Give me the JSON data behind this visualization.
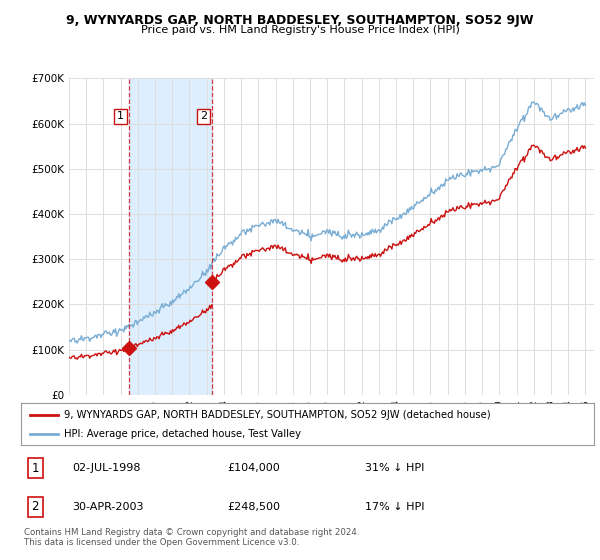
{
  "title": "9, WYNYARDS GAP, NORTH BADDESLEY, SOUTHAMPTON, SO52 9JW",
  "subtitle": "Price paid vs. HM Land Registry's House Price Index (HPI)",
  "ylim": [
    0,
    700000
  ],
  "yticks": [
    0,
    100000,
    200000,
    300000,
    400000,
    500000,
    600000,
    700000
  ],
  "ytick_labels": [
    "£0",
    "£100K",
    "£200K",
    "£300K",
    "£400K",
    "£500K",
    "£600K",
    "£700K"
  ],
  "sale1_date": 1998.5,
  "sale1_price": 104000,
  "sale1_label": "1",
  "sale2_date": 2003.33,
  "sale2_price": 248500,
  "sale2_label": "2",
  "hpi_color": "#7aadd4",
  "price_color": "#cc1111",
  "dashed_color": "#cc1111",
  "shade_color": "#ddeeff",
  "legend_line1": "9, WYNYARDS GAP, NORTH BADDESLEY, SOUTHAMPTON, SO52 9JW (detached house)",
  "legend_line2": "HPI: Average price, detached house, Test Valley",
  "table_row1_num": "1",
  "table_row1_date": "02-JUL-1998",
  "table_row1_price": "£104,000",
  "table_row1_hpi": "31% ↓ HPI",
  "table_row2_num": "2",
  "table_row2_date": "30-APR-2003",
  "table_row2_price": "£248,500",
  "table_row2_hpi": "17% ↓ HPI",
  "footnote": "Contains HM Land Registry data © Crown copyright and database right 2024.\nThis data is licensed under the Open Government Licence v3.0.",
  "background_color": "#ffffff",
  "grid_color": "#dddddd"
}
